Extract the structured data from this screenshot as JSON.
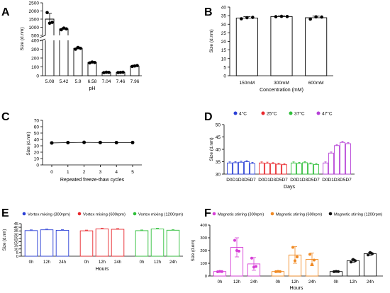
{
  "panels": {
    "A": {
      "letter": "A",
      "type": "bar",
      "xlabel": "pH",
      "ylabel": "Size (d.nm)",
      "categories": [
        "5.08",
        "5.42",
        "5.9",
        "6.58",
        "7.04",
        "7.46",
        "7.96"
      ],
      "values": [
        1500,
        900,
        310,
        150,
        38,
        38,
        110
      ],
      "err": [
        350,
        60,
        15,
        10,
        5,
        4,
        10
      ],
      "points": [
        [
          1900,
          1250,
          1300
        ],
        [
          850,
          950,
          900
        ],
        [
          300,
          320,
          310
        ],
        [
          145,
          155,
          150
        ],
        [
          35,
          40,
          38
        ],
        [
          36,
          38,
          40
        ],
        [
          105,
          110,
          115
        ]
      ],
      "yticks_upper": [
        "500",
        "1000",
        "1500",
        "2000",
        "2500"
      ],
      "yticks_lower": [
        "0",
        "100",
        "200",
        "300",
        "400"
      ],
      "ylim_lower": [
        0,
        400
      ],
      "ylim_upper": [
        500,
        2500
      ]
    },
    "B": {
      "letter": "B",
      "type": "bar",
      "xlabel": "Concentration (mM)",
      "ylabel": "Size (d.nm)",
      "categories": [
        "150mM",
        "300mM",
        "600mM"
      ],
      "values": [
        33.6,
        34.5,
        33.8
      ],
      "err": [
        0.8,
        0.4,
        0.9
      ],
      "points": [
        [
          33.2,
          33.8,
          34.0
        ],
        [
          34.4,
          34.6,
          34.5
        ],
        [
          33.0,
          34.3,
          34.2
        ]
      ],
      "yticks": [
        "0",
        "5",
        "10",
        "15",
        "20",
        "25",
        "30",
        "35",
        "40"
      ],
      "ylim": [
        0,
        40
      ]
    },
    "C": {
      "letter": "C",
      "type": "line",
      "xlabel": "Repeated freeze-thaw cycles",
      "ylabel": "Size (d.nm)",
      "x": [
        0,
        1,
        2,
        3,
        4,
        5
      ],
      "y": [
        34.5,
        35.0,
        35.4,
        35.1,
        35.0,
        35.1
      ],
      "xticks": [
        "0",
        "1",
        "2",
        "3",
        "4",
        "5"
      ],
      "yticks": [
        "0",
        "10",
        "20",
        "30",
        "40",
        "50",
        "60",
        "70"
      ],
      "ylim": [
        0,
        70
      ]
    },
    "D": {
      "letter": "D",
      "type": "bar",
      "xlabel": "Days",
      "ylabel": "Size (d.nm)",
      "tick_groups": [
        "D0D1D3D5D7",
        "D0D1D3D5D7",
        "D0D1D3D5D7",
        "D0D1D3D5D7"
      ],
      "series": [
        {
          "name": "4°C",
          "color": "#2a3fd6",
          "values": [
            34.5,
            34.6,
            34.8,
            35.0,
            34.3
          ]
        },
        {
          "name": "25°C",
          "color": "#e8262b",
          "values": [
            34.5,
            34.4,
            34.2,
            34.0,
            33.8
          ]
        },
        {
          "name": "37°C",
          "color": "#2fbf3a",
          "values": [
            34.5,
            34.3,
            34.6,
            34.1,
            33.9
          ]
        },
        {
          "name": "47°C",
          "color": "#b53fd6",
          "values": [
            34.5,
            38.5,
            41.5,
            42.8,
            42.3
          ]
        }
      ],
      "yticks": [
        "30",
        "35",
        "40",
        "45",
        "50"
      ],
      "ylim": [
        30,
        50
      ]
    },
    "E": {
      "letter": "E",
      "type": "bar",
      "xlabel": "Hours",
      "ylabel": "Size (d.nm)",
      "categories": [
        "0h",
        "12h",
        "24h"
      ],
      "series": [
        {
          "name": "Vortex mixing (300rpm)",
          "color": "#2a3fd6",
          "values": [
            35.4,
            36.5,
            35.8
          ]
        },
        {
          "name": "Vortex mixing (600rpm)",
          "color": "#e8262b",
          "values": [
            35.1,
            37.8,
            37.2
          ]
        },
        {
          "name": "Vortex mixing (1200rpm)",
          "color": "#2fbf3a",
          "values": [
            35.3,
            37.6,
            35.9
          ]
        }
      ],
      "yticks": [
        "0",
        "5",
        "10",
        "15",
        "20",
        "25",
        "30",
        "35",
        "40",
        "45"
      ],
      "ylim": [
        0,
        45
      ]
    },
    "F": {
      "letter": "F",
      "type": "bar",
      "xlabel": "Hours",
      "ylabel": "Size (d.nm)",
      "categories": [
        "0h",
        "12h",
        "24h"
      ],
      "series": [
        {
          "name": "Magnetic stirring (300rpm)",
          "color": "#d63fd6",
          "values": [
            35,
            225,
            95
          ],
          "err": [
            3,
            75,
            50
          ],
          "points": [
            [
              33,
              36,
              35
            ],
            [
              280,
              200,
              195
            ],
            [
              140,
              70,
              75
            ]
          ]
        },
        {
          "name": "Magnetic stirring (600rpm)",
          "color": "#f08a24",
          "values": [
            35,
            165,
            130
          ],
          "err": [
            3,
            65,
            50
          ],
          "points": [
            [
              34,
              36,
              35
            ],
            [
              225,
              120,
              150
            ],
            [
              170,
              90,
              125
            ]
          ]
        },
        {
          "name": "Magnetic stirring (1200rpm)",
          "color": "#111111",
          "values": [
            35,
            120,
            175
          ],
          "err": [
            3,
            12,
            12
          ],
          "points": [
            [
              34,
              36,
              35
            ],
            [
              110,
              130,
              120
            ],
            [
              165,
              185,
              175
            ]
          ]
        }
      ],
      "yticks": [
        "0",
        "100",
        "200",
        "300",
        "400"
      ],
      "ylim": [
        0,
        400
      ]
    }
  }
}
